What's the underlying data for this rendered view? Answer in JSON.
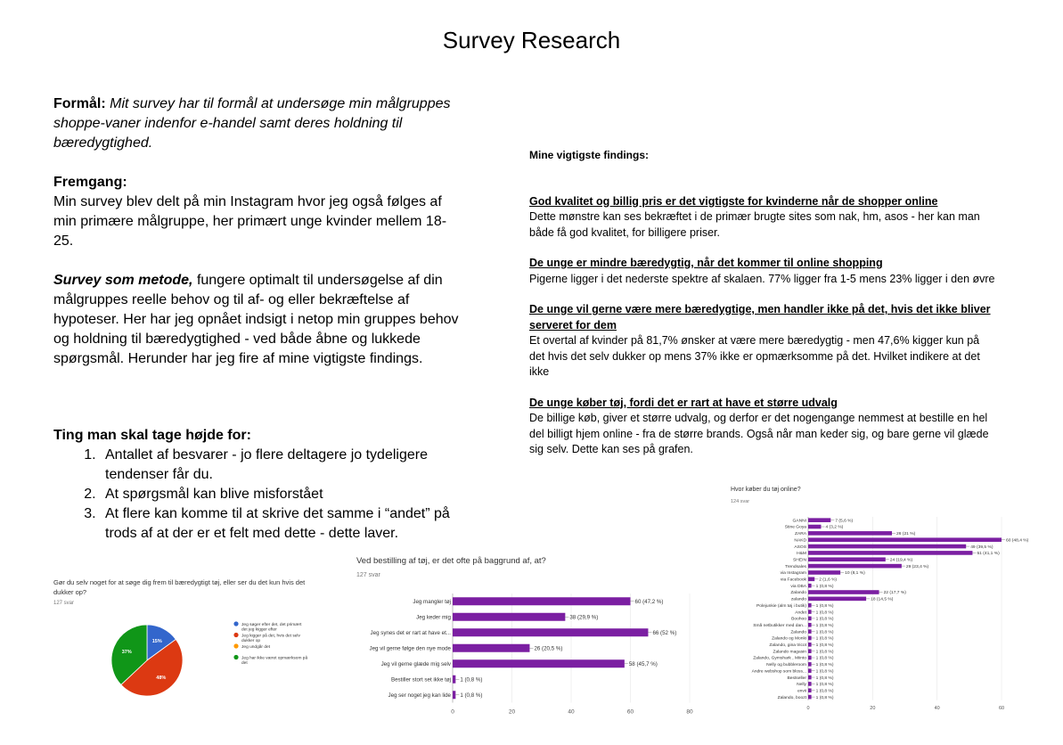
{
  "page": {
    "title": "Survey Research"
  },
  "left": {
    "formaal_label": "Formål:",
    "formaal_text": "Mit survey har til formål at undersøge min målgruppes shoppe-vaner indenfor  e-handel samt deres holdning til bæredygtighed.",
    "fremgang_label": "Fremgang:",
    "fremgang_text": "Min survey blev delt på min Instagram hvor jeg også følges af min primære målgruppe, her primært unge kvinder mellem 18-25.",
    "metode_label": "Survey som metode,",
    "metode_text": " fungere optimalt til undersøgelse af din målgruppes reelle behov og til af- og eller bekræftelse af hypoteser. Her har jeg opnået indsigt i netop min gruppes behov og holdning til bæredygtighed - ved både åbne og lukkede spørgsmål. Herunder har jeg fire af mine vigtigste findings.",
    "ting_heading": "Ting man skal tage højde for:",
    "ting_items": [
      "Antallet af besvarer - jo flere deltagere jo tydeligere tendenser får du.",
      "At spørgsmål kan blive misforstået",
      "At flere kan komme til at skrive det samme i “andet” på trods af at der er et felt med dette - dette laver."
    ]
  },
  "findings": {
    "intro": "Mine vigtigste findings:",
    "items": [
      {
        "heading": "God kvalitet og billig pris er det vigtigste for kvinderne når de shopper online",
        "text": " Dette mønstre kan ses bekræftet i de primær brugte sites som nak, hm, asos - her kan man både få god kvalitet, for billigere priser."
      },
      {
        "heading": "De unge er mindre bæredygtig, når det kommer til online shopping",
        "text": "Pigerne ligger i det nederste spektre af skalaen. 77% ligger fra 1-5 mens 23% ligger i den øvre"
      },
      {
        "heading": "De unge vil gerne være mere bæredygtige, men handler ikke på det, hvis det ikke bliver serveret for dem",
        "text": "Et overtal af kvinder på 81,7% ønsker at være mere bæredygtig - men 47,6% kigger kun på det hvis det selv dukker op mens 37% ikke er opmærksomme på det. Hvilket indikere at det ikke"
      },
      {
        "heading": "De unge køber tøj, fordi det er rart at have et større udvalg",
        "text": "De billige køb, giver et større udvalg, og derfor er det nogengange nemmest at bestille en hel del billigt hjem online - fra de større brands. Også når man keder sig, og bare gerne vil glæde sig selv. Dette kan ses på grafen."
      }
    ]
  },
  "chart_data": [
    {
      "type": "pie",
      "title": "Gør du selv noget for at søge dig frem til bæredygtigt tøj, eller ser du det kun hvis det dukker op?",
      "subtitle": "127 svar",
      "slices": [
        {
          "label": "Jeg søger efter det, det primært det jeg kigger efter",
          "value": 15,
          "color": "#3366cc",
          "display": "15%"
        },
        {
          "label": "Jeg kigger på det, hvis det selv dukker op",
          "value": 48,
          "color": "#dc3912",
          "display": "48%"
        },
        {
          "label": "Jeg undgår det",
          "value": 0,
          "color": "#ff9900",
          "display": ""
        },
        {
          "label": "Jeg har ikke været opmærksom på det",
          "value": 37,
          "color": "#109618",
          "display": "37%"
        }
      ]
    },
    {
      "type": "bar",
      "orientation": "horizontal",
      "title": "Ved bestilling af tøj, er det ofte på baggrund af, at?",
      "subtitle": "127 svar",
      "color": "#7b1fa2",
      "xlim": [
        0,
        80
      ],
      "xticks": [
        "0",
        "20",
        "40",
        "60",
        "80"
      ],
      "categories": [
        "Jeg mangler tøj",
        "Jeg keder mig",
        "Jeg synes det er rart at have et...",
        "Jeg vil gerne følge den nye mode",
        "Jeg vil gerne glæde mig selv",
        "Bestiller stort set ikke tøj",
        "Jeg ser noget jeg kan lide"
      ],
      "values": [
        60,
        38,
        66,
        26,
        58,
        1,
        1
      ],
      "labels": [
        "60 (47,2 %)",
        "38 (29,9 %)",
        "66 (52 %)",
        "26 (20,5 %)",
        "58 (45,7 %)",
        "1 (0,8 %)",
        "1 (0,8 %)"
      ]
    },
    {
      "type": "bar",
      "orientation": "horizontal",
      "title": "Hvor køber du tøj online?",
      "subtitle": "124 svar",
      "color": "#7b1fa2",
      "xlim": [
        0,
        60
      ],
      "xticks": [
        "0",
        "20",
        "40",
        "60"
      ],
      "categories": [
        "GANNI",
        "Stine Goya",
        "ZARA",
        "NAKD",
        "ASOS",
        "H&M",
        "SHEIN",
        "Trendsales",
        "via Instagram",
        "via Facebook",
        "via DBA",
        "Zalando",
        "zalando",
        "Polejunkie (alm tøj i butik)",
        "Andet",
        "Boohoo",
        "Små netbutikker med dan...",
        "Zalando",
        "Zalando og Monki",
        "Zalando, gina tricot",
        "Zalando magasin",
        "Zalando, Gymshark , Miinto",
        "Nelly og bubbleroom",
        "Andre webshop som bloss...",
        "Bestseller",
        "Nelly",
        "envii",
        "Zalando, boozt"
      ],
      "values": [
        7,
        4,
        26,
        60,
        49,
        51,
        24,
        29,
        10,
        2,
        1,
        22,
        18,
        1,
        1,
        1,
        1,
        1,
        1,
        1,
        1,
        1,
        1,
        1,
        1,
        1,
        1,
        1
      ],
      "labels": [
        "7 (5,6 %)",
        "4 (3,2 %)",
        "26 (21 %)",
        "60 (48,4 %)",
        "49 (39,5 %)",
        "51 (41,1 %)",
        "24 (19,4 %)",
        "29 (23,4 %)",
        "10 (8,1 %)",
        "2 (1,6 %)",
        "1 (0,8 %)",
        "22 (17,7 %)",
        "18 (14,5 %)",
        "1 (0,8 %)",
        "1 (0,8 %)",
        "1 (0,8 %)",
        "1 (0,8 %)",
        "1 (0,8 %)",
        "1 (0,8 %)",
        "1 (0,8 %)",
        "1 (0,8 %)",
        "1 (0,8 %)",
        "1 (0,8 %)",
        "1 (0,8 %)",
        "1 (0,8 %)",
        "1 (0,8 %)",
        "1 (0,8 %)",
        "1 (0,8 %)"
      ]
    }
  ]
}
